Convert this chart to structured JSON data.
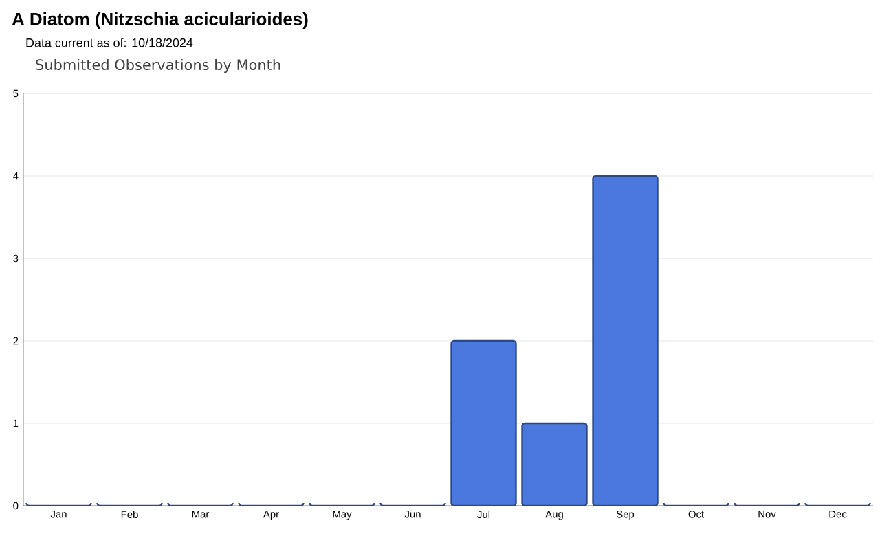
{
  "chart_data": {
    "type": "bar",
    "title": "A Diatom   (Nitzschia acicularioides)",
    "subtitle": "Data current as of: 10/18/2024",
    "annotations": [
      "Submitted Observations by Month"
    ],
    "categories": [
      "Jan",
      "Feb",
      "Mar",
      "Apr",
      "May",
      "Jun",
      "Jul",
      "Aug",
      "Sep",
      "Oct",
      "Nov",
      "Dec"
    ],
    "values": [
      0,
      0,
      0,
      0,
      0,
      0,
      2,
      1,
      4,
      0,
      0,
      0
    ],
    "color": "#4a78dc",
    "ylim": [
      0,
      5
    ],
    "yticks": [
      0,
      1,
      2,
      3,
      4,
      5
    ],
    "grid": "y"
  }
}
